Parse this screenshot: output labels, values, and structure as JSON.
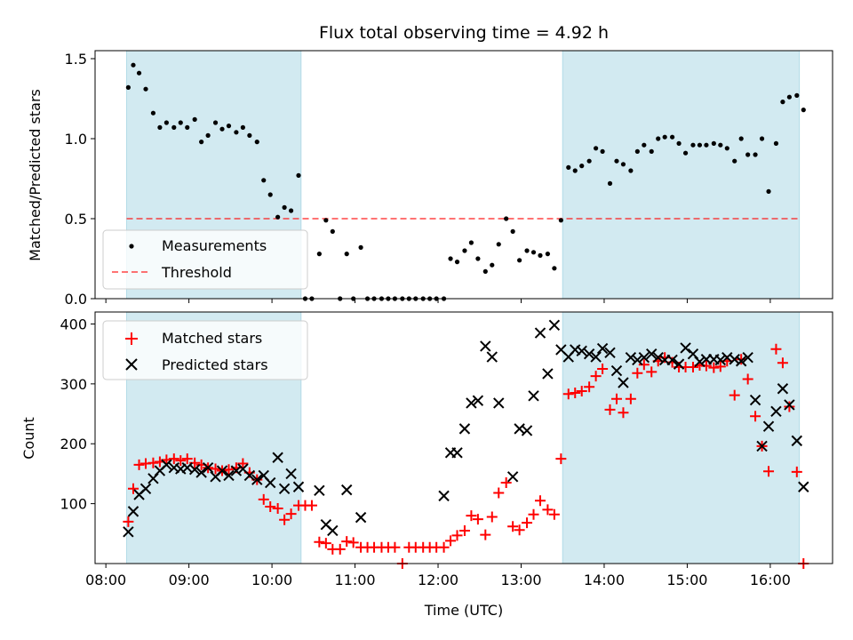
{
  "chart_data": [
    {
      "type": "scatter",
      "title": "Flux total observing time = 4.92 h",
      "xlabel": "",
      "ylabel": "Matched/Predicted stars",
      "xlim": [
        7.87,
        16.75
      ],
      "ylim": [
        0,
        1.55
      ],
      "yticks": [
        0.0,
        0.5,
        1.0,
        1.5
      ],
      "ytick_labels": [
        "0.0",
        "0.5",
        "1.0",
        "1.5"
      ],
      "shaded_intervals": [
        [
          8.25,
          10.35
        ],
        [
          13.5,
          16.35
        ]
      ],
      "shade_color": "#add8e6",
      "threshold": {
        "name": "Threshold",
        "value": 0.5,
        "x_range": [
          8.25,
          16.35
        ],
        "color": "#ff0000"
      },
      "legend_location": "lower-left",
      "series": [
        {
          "name": "Measurements",
          "color": "#000000",
          "marker": "dot",
          "x": [
            8.27,
            8.33,
            8.4,
            8.48,
            8.57,
            8.65,
            8.73,
            8.82,
            8.9,
            8.98,
            9.07,
            9.15,
            9.23,
            9.32,
            9.4,
            9.48,
            9.57,
            9.65,
            9.73,
            9.82,
            9.9,
            9.98,
            10.07,
            10.15,
            10.23,
            10.32,
            10.4,
            10.48,
            10.57,
            10.65,
            10.73,
            10.82,
            10.9,
            10.98,
            11.07,
            11.15,
            11.23,
            11.32,
            11.4,
            11.48,
            11.57,
            11.65,
            11.73,
            11.82,
            11.9,
            11.98,
            12.07,
            12.15,
            12.23,
            12.32,
            12.4,
            12.48,
            12.57,
            12.65,
            12.73,
            12.82,
            12.9,
            12.98,
            13.07,
            13.15,
            13.23,
            13.32,
            13.4,
            13.48,
            13.57,
            13.65,
            13.73,
            13.82,
            13.9,
            13.98,
            14.07,
            14.15,
            14.23,
            14.32,
            14.4,
            14.48,
            14.57,
            14.65,
            14.73,
            14.82,
            14.9,
            14.98,
            15.07,
            15.15,
            15.23,
            15.32,
            15.4,
            15.48,
            15.57,
            15.65,
            15.73,
            15.82,
            15.9,
            15.98,
            16.07,
            16.15,
            16.23,
            16.32,
            16.4
          ],
          "y": [
            1.32,
            1.46,
            1.41,
            1.31,
            1.16,
            1.07,
            1.1,
            1.07,
            1.1,
            1.07,
            1.12,
            0.98,
            1.02,
            1.1,
            1.06,
            1.08,
            1.04,
            1.07,
            1.02,
            0.98,
            0.74,
            0.65,
            0.51,
            0.57,
            0.55,
            0.77,
            0.0,
            0.0,
            0.28,
            0.49,
            0.42,
            0.0,
            0.28,
            0.0,
            0.32,
            0.0,
            0.0,
            0.0,
            0.0,
            0.0,
            0.0,
            0.0,
            0.0,
            0.0,
            0.0,
            0.0,
            0.0,
            0.25,
            0.23,
            0.3,
            0.35,
            0.25,
            0.17,
            0.21,
            0.34,
            0.5,
            0.42,
            0.24,
            0.3,
            0.29,
            0.27,
            0.28,
            0.19,
            0.49,
            0.82,
            0.8,
            0.83,
            0.86,
            0.94,
            0.92,
            0.72,
            0.86,
            0.84,
            0.8,
            0.92,
            0.96,
            0.92,
            1.0,
            1.01,
            1.01,
            0.97,
            0.91,
            0.96,
            0.96,
            0.96,
            0.97,
            0.96,
            0.94,
            0.86,
            1.0,
            0.9,
            0.9,
            1.0,
            0.67,
            0.97,
            1.23,
            1.26,
            1.27,
            1.18
          ]
        }
      ]
    },
    {
      "type": "scatter",
      "title": "",
      "xlabel": "Time (UTC)",
      "ylabel": "Count",
      "xlim": [
        7.87,
        16.75
      ],
      "ylim": [
        0,
        420
      ],
      "yticks": [
        100,
        200,
        300,
        400
      ],
      "ytick_labels": [
        "100",
        "200",
        "300",
        "400"
      ],
      "xticks": [
        8,
        9,
        10,
        11,
        12,
        13,
        14,
        15,
        16
      ],
      "xtick_labels": [
        "08:00",
        "09:00",
        "10:00",
        "11:00",
        "12:00",
        "13:00",
        "14:00",
        "15:00",
        "16:00"
      ],
      "shaded_intervals": [
        [
          8.25,
          10.35
        ],
        [
          13.5,
          16.35
        ]
      ],
      "shade_color": "#add8e6",
      "legend_location": "top-left",
      "series": [
        {
          "name": "Matched stars",
          "color": "#ff0000",
          "marker": "plus",
          "x": [
            8.27,
            8.33,
            8.4,
            8.48,
            8.57,
            8.65,
            8.73,
            8.82,
            8.9,
            8.98,
            9.07,
            9.15,
            9.23,
            9.32,
            9.4,
            9.48,
            9.57,
            9.65,
            9.73,
            9.82,
            9.9,
            9.98,
            10.07,
            10.15,
            10.23,
            10.32,
            10.4,
            10.48,
            10.57,
            10.65,
            10.73,
            10.82,
            10.9,
            10.98,
            11.07,
            11.15,
            11.23,
            11.32,
            11.4,
            11.48,
            11.57,
            11.65,
            11.73,
            11.82,
            11.9,
            11.98,
            12.07,
            12.15,
            12.23,
            12.32,
            12.4,
            12.48,
            12.57,
            12.65,
            12.73,
            12.82,
            12.9,
            12.98,
            13.07,
            13.15,
            13.23,
            13.32,
            13.4,
            13.48,
            13.57,
            13.65,
            13.73,
            13.82,
            13.9,
            13.98,
            14.07,
            14.15,
            14.23,
            14.32,
            14.4,
            14.48,
            14.57,
            14.65,
            14.73,
            14.82,
            14.9,
            14.98,
            15.07,
            15.15,
            15.23,
            15.32,
            15.4,
            15.48,
            15.57,
            15.65,
            15.73,
            15.82,
            15.9,
            15.98,
            16.07,
            16.15,
            16.23,
            16.32,
            16.4
          ],
          "y": [
            70,
            125,
            165,
            167,
            168,
            170,
            173,
            175,
            172,
            175,
            168,
            165,
            160,
            158,
            155,
            157,
            160,
            167,
            152,
            140,
            107,
            95,
            92,
            73,
            83,
            97,
            97,
            97,
            36,
            34,
            24,
            24,
            37,
            35,
            27,
            27,
            27,
            27,
            27,
            27,
            0,
            27,
            27,
            27,
            27,
            27,
            27,
            38,
            47,
            55,
            80,
            74,
            48,
            78,
            118,
            135,
            62,
            56,
            68,
            82,
            105,
            90,
            82,
            175,
            283,
            285,
            288,
            295,
            313,
            325,
            257,
            275,
            252,
            275,
            318,
            332,
            320,
            338,
            344,
            336,
            328,
            328,
            328,
            331,
            330,
            327,
            329,
            338,
            281,
            341,
            308,
            246,
            196,
            154,
            358,
            335,
            262,
            153,
            0
          ]
        },
        {
          "name": "Predicted stars",
          "color": "#000000",
          "marker": "x",
          "x": [
            8.27,
            8.33,
            8.4,
            8.48,
            8.57,
            8.65,
            8.73,
            8.82,
            8.9,
            8.98,
            9.07,
            9.15,
            9.23,
            9.32,
            9.4,
            9.48,
            9.57,
            9.65,
            9.73,
            9.82,
            9.9,
            9.98,
            10.07,
            10.15,
            10.23,
            10.32,
            10.4,
            10.48,
            10.57,
            10.65,
            10.73,
            10.82,
            10.9,
            10.98,
            11.07,
            11.15,
            11.23,
            11.32,
            11.4,
            11.48,
            11.57,
            11.65,
            11.73,
            11.82,
            11.9,
            11.98,
            12.07,
            12.15,
            12.23,
            12.32,
            12.4,
            12.48,
            12.57,
            12.65,
            12.73,
            12.82,
            12.9,
            12.98,
            13.07,
            13.15,
            13.23,
            13.32,
            13.4,
            13.48,
            13.57,
            13.65,
            13.73,
            13.82,
            13.9,
            13.98,
            14.07,
            14.15,
            14.23,
            14.32,
            14.4,
            14.48,
            14.57,
            14.65,
            14.73,
            14.82,
            14.9,
            14.98,
            15.07,
            15.15,
            15.23,
            15.32,
            15.4,
            15.48,
            15.57,
            15.65,
            15.73,
            15.82,
            15.9,
            15.98,
            16.07,
            16.15,
            16.23,
            16.32,
            16.4
          ],
          "y": [
            53,
            87,
            115,
            125,
            142,
            155,
            165,
            160,
            158,
            160,
            157,
            152,
            160,
            145,
            155,
            147,
            155,
            158,
            147,
            140,
            147,
            135,
            177,
            125,
            150,
            128,
            null,
            null,
            122,
            65,
            55,
            null,
            123,
            null,
            77,
            null,
            null,
            null,
            null,
            null,
            null,
            null,
            null,
            null,
            null,
            null,
            113,
            185,
            185,
            225,
            268,
            272,
            363,
            345,
            268,
            null,
            145,
            225,
            222,
            280,
            385,
            317,
            398,
            357,
            345,
            357,
            355,
            350,
            345,
            359,
            352,
            322,
            302,
            344,
            340,
            344,
            350,
            344,
            340,
            340,
            333,
            360,
            350,
            337,
            341,
            341,
            340,
            344,
            341,
            338,
            344,
            273,
            196,
            229,
            254,
            292,
            265,
            205,
            128
          ]
        }
      ]
    }
  ]
}
